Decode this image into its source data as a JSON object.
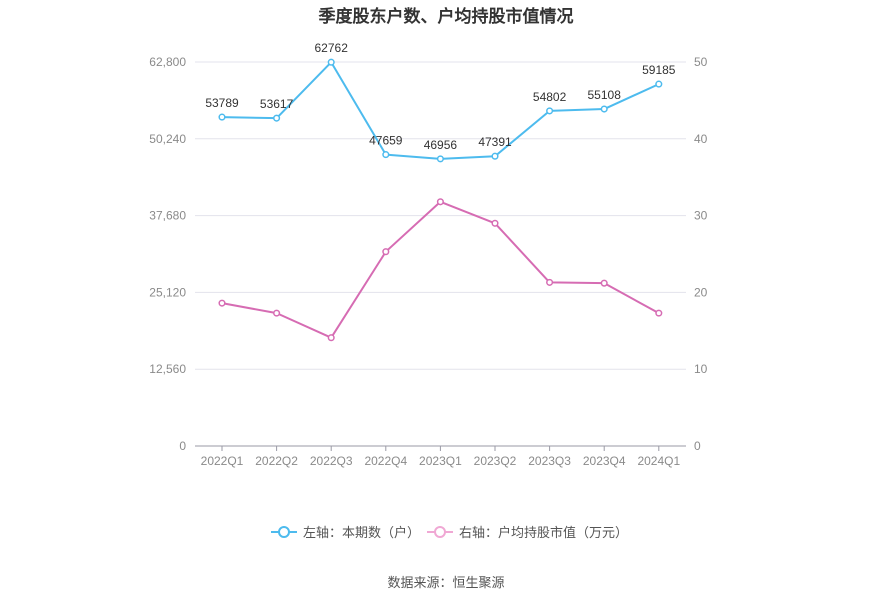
{
  "chart_data": {
    "type": "line",
    "title": "季度股东户数、户均持股市值情况",
    "categories": [
      "2022Q1",
      "2022Q2",
      "2022Q3",
      "2022Q4",
      "2023Q1",
      "2023Q2",
      "2023Q3",
      "2023Q4",
      "2024Q1"
    ],
    "series": [
      {
        "name": "左轴：本期数（户）",
        "axis": "left",
        "color": "#4dbbee",
        "values": [
          53789,
          53617,
          62762,
          47659,
          46956,
          47391,
          54802,
          55108,
          59185
        ],
        "labels": [
          "53789",
          "53617",
          "62762",
          "47659",
          "46956",
          "47391",
          "54802",
          "55108",
          "59185"
        ]
      },
      {
        "name": "右轴：户均持股市值（万元）",
        "axis": "right",
        "color": "#d66cb3",
        "values": [
          18.6,
          17.3,
          14.1,
          25.3,
          31.8,
          29.0,
          21.3,
          21.2,
          17.3
        ]
      }
    ],
    "left_axis": {
      "min": 0,
      "max": 62800,
      "ticks": [
        "0",
        "12,560",
        "25,120",
        "37,680",
        "50,240",
        "62,800"
      ]
    },
    "right_axis": {
      "min": 0,
      "max": 50,
      "ticks": [
        "0",
        "10",
        "20",
        "30",
        "40",
        "50"
      ]
    },
    "grid": true,
    "legend_position": "bottom"
  },
  "source_text": "数据来源：恒生聚源"
}
